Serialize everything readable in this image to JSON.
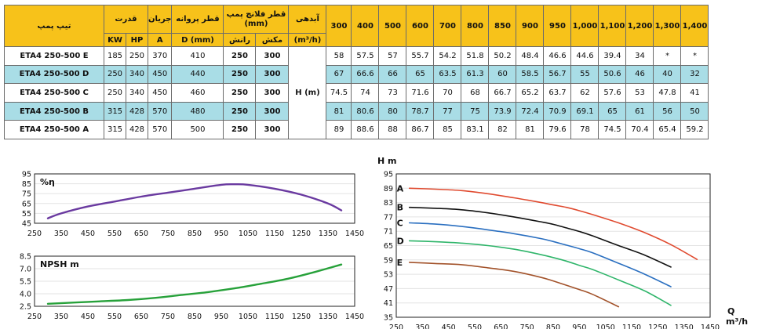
{
  "table": {
    "h_model": "تیپ پمپ",
    "h_power": "قدرت",
    "h_current": "جریان",
    "h_impeller": "قطر پروانه",
    "h_flange": "قطر فلانچ پمپ (mm)",
    "h_flow": "آبدهی",
    "u_kw": "KW",
    "u_hp": "HP",
    "u_a": "A",
    "u_d": "D (mm)",
    "u_discharge": "رانش",
    "u_suction": "مکش",
    "u_flow": "(m³/h)",
    "flows": [
      "300",
      "400",
      "500",
      "600",
      "700",
      "800",
      "850",
      "900",
      "950",
      "1,000",
      "1,100",
      "1,200",
      "1,300",
      "1,400"
    ],
    "h_label": "H (m)",
    "rows": [
      {
        "model": "ETA4 250-500 E",
        "kw": "185",
        "hp": "250",
        "a": "370",
        "d": "410",
        "discharge": "250",
        "suction": "300",
        "heads": [
          "58",
          "57.5",
          "57",
          "55.7",
          "54.2",
          "51.8",
          "50.2",
          "48.4",
          "46.6",
          "44.6",
          "39.4",
          "34",
          "*",
          "*"
        ]
      },
      {
        "model": "ETA4 250-500 D",
        "kw": "250",
        "hp": "340",
        "a": "450",
        "d": "440",
        "discharge": "250",
        "suction": "300",
        "heads": [
          "67",
          "66.6",
          "66",
          "65",
          "63.5",
          "61.3",
          "60",
          "58.5",
          "56.7",
          "55",
          "50.6",
          "46",
          "40",
          "32"
        ]
      },
      {
        "model": "ETA4 250-500 C",
        "kw": "250",
        "hp": "340",
        "a": "450",
        "d": "460",
        "discharge": "250",
        "suction": "300",
        "heads": [
          "74.5",
          "74",
          "73",
          "71.6",
          "70",
          "68",
          "66.7",
          "65.2",
          "63.7",
          "62",
          "57.6",
          "53",
          "47.8",
          "41"
        ]
      },
      {
        "model": "ETA4 250-500 B",
        "kw": "315",
        "hp": "428",
        "a": "570",
        "d": "480",
        "discharge": "250",
        "suction": "300",
        "heads": [
          "81",
          "80.6",
          "80",
          "78.7",
          "77",
          "75",
          "73.9",
          "72.4",
          "70.9",
          "69.1",
          "65",
          "61",
          "56",
          "50"
        ]
      },
      {
        "model": "ETA4 250-500 A",
        "kw": "315",
        "hp": "428",
        "a": "570",
        "d": "500",
        "discharge": "250",
        "suction": "300",
        "heads": [
          "89",
          "88.6",
          "88",
          "86.7",
          "85",
          "83.1",
          "82",
          "81",
          "79.6",
          "78",
          "74.5",
          "70.4",
          "65.4",
          "59.2"
        ]
      }
    ]
  },
  "chart_data": [
    {
      "type": "line",
      "label": "%η",
      "xlim": [
        250,
        1450
      ],
      "xticks": [
        "250",
        "350",
        "450",
        "550",
        "650",
        "750",
        "850",
        "950",
        "1050",
        "1150",
        "1250",
        "1350",
        "1450"
      ],
      "ylim": [
        45,
        95
      ],
      "yticks": [
        "45",
        "55",
        "65",
        "75",
        "85",
        "95"
      ],
      "series": [
        {
          "color": "#6a3aa0",
          "x": [
            300,
            350,
            450,
            550,
            650,
            750,
            850,
            950,
            1000,
            1050,
            1150,
            1250,
            1350,
            1400
          ],
          "y": [
            50,
            55,
            62,
            67,
            72,
            76,
            80,
            84,
            84.5,
            84,
            80,
            74,
            65,
            58
          ]
        }
      ]
    },
    {
      "type": "line",
      "label": "NPSH m",
      "xlim": [
        250,
        1450
      ],
      "xticks": [
        "250",
        "350",
        "450",
        "550",
        "650",
        "750",
        "850",
        "950",
        "1050",
        "1150",
        "1250",
        "1350",
        "1450"
      ],
      "ylim": [
        2.5,
        8.5
      ],
      "yticks": [
        "2.5",
        "4.0",
        "5.5",
        "7.0",
        "8.5"
      ],
      "series": [
        {
          "color": "#27a13a",
          "x": [
            300,
            400,
            500,
            600,
            700,
            800,
            900,
            1000,
            1100,
            1200,
            1300,
            1400
          ],
          "y": [
            2.8,
            2.95,
            3.1,
            3.25,
            3.5,
            3.85,
            4.2,
            4.65,
            5.2,
            5.8,
            6.6,
            7.5
          ]
        }
      ]
    },
    {
      "type": "line",
      "ylabel": "H m",
      "xlabel": "Q",
      "xunit": "m³/h",
      "xlim": [
        250,
        1450
      ],
      "xticks": [
        "250",
        "350",
        "450",
        "550",
        "650",
        "750",
        "850",
        "950",
        "1050",
        "1150",
        "1250",
        "1350",
        "1450"
      ],
      "ylim": [
        35,
        95
      ],
      "yticks": [
        "35",
        "41",
        "47",
        "53",
        "59",
        "65",
        "71",
        "77",
        "83",
        "89",
        "95"
      ],
      "series": [
        {
          "name": "A",
          "color": "#e04a2f",
          "x": [
            300,
            400,
            500,
            600,
            700,
            800,
            850,
            900,
            950,
            1000,
            1100,
            1200,
            1300,
            1400
          ],
          "y": [
            89,
            88.6,
            88,
            86.7,
            85,
            83.1,
            82,
            81,
            79.6,
            78,
            74.5,
            70.4,
            65.4,
            59.2
          ]
        },
        {
          "name": "B",
          "color": "#111111",
          "x": [
            300,
            400,
            500,
            600,
            700,
            800,
            850,
            900,
            950,
            1000,
            1100,
            1200,
            1300
          ],
          "y": [
            81,
            80.6,
            80,
            78.7,
            77,
            75,
            73.9,
            72.4,
            70.9,
            69.1,
            65,
            61,
            56
          ]
        },
        {
          "name": "C",
          "color": "#2a6fc0",
          "x": [
            300,
            400,
            500,
            600,
            700,
            800,
            850,
            900,
            950,
            1000,
            1100,
            1200,
            1300
          ],
          "y": [
            74.5,
            74,
            73,
            71.6,
            70,
            68,
            66.7,
            65.2,
            63.7,
            62,
            57.6,
            53,
            47.8
          ]
        },
        {
          "name": "D",
          "color": "#2fb56a",
          "x": [
            300,
            400,
            500,
            600,
            700,
            800,
            850,
            900,
            950,
            1000,
            1100,
            1200,
            1300
          ],
          "y": [
            67,
            66.6,
            66,
            65,
            63.5,
            61.3,
            60,
            58.5,
            56.7,
            55,
            50.6,
            46,
            40
          ]
        },
        {
          "name": "E",
          "color": "#a2522a",
          "x": [
            300,
            400,
            500,
            600,
            700,
            800,
            850,
            900,
            950,
            1000,
            1100
          ],
          "y": [
            58,
            57.5,
            57,
            55.7,
            54.2,
            51.8,
            50.2,
            48.4,
            46.6,
            44.6,
            39.4
          ]
        }
      ]
    }
  ]
}
